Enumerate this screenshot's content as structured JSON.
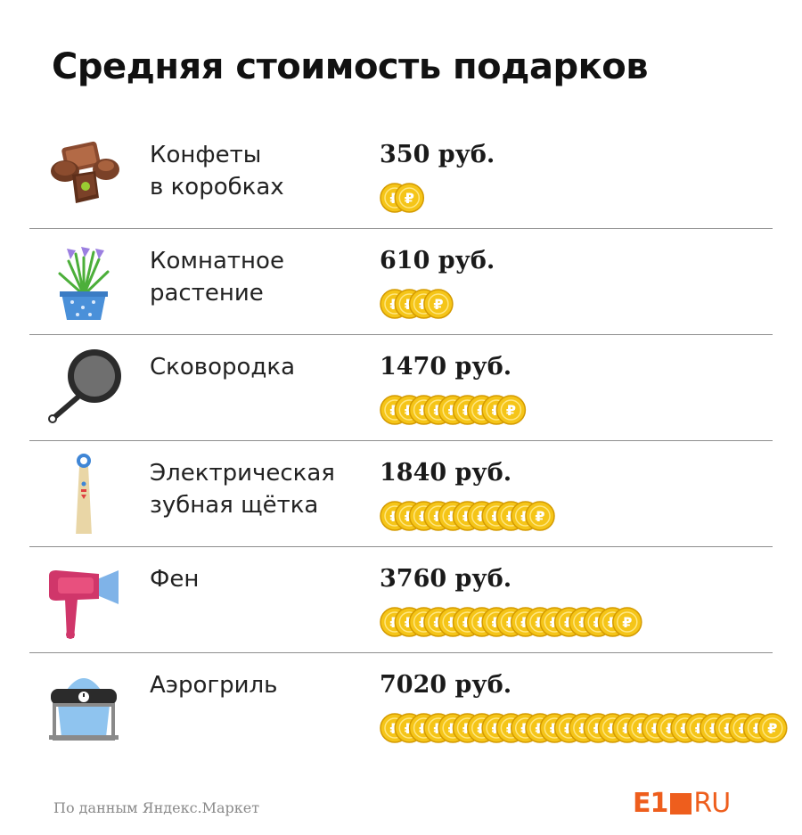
{
  "title": "Средняя стоимость подарков",
  "rows": [
    {
      "label_lines": [
        "Конфеты",
        "в коробках"
      ],
      "value_text": "350 руб.",
      "icon": "chocolate-candies-icon"
    },
    {
      "label_lines": [
        "Комнатное",
        "растение"
      ],
      "value_text": "610 руб.",
      "icon": "potted-plant-icon"
    },
    {
      "label_lines": [
        "Сковородка"
      ],
      "value_text": "1470 руб.",
      "icon": "frying-pan-icon"
    },
    {
      "label_lines": [
        "Электрическая",
        "зубная щётка"
      ],
      "value_text": "1840 руб.",
      "icon": "electric-toothbrush-icon"
    },
    {
      "label_lines": [
        "Фен"
      ],
      "value_text": "3760 руб.",
      "icon": "hair-dryer-icon"
    },
    {
      "label_lines": [
        "Аэрогриль"
      ],
      "value_text": "7020 руб.",
      "icon": "air-grill-icon"
    }
  ],
  "chart_data": {
    "type": "bar",
    "title": "Средняя стоимость подарков",
    "categories": [
      "Конфеты в коробках",
      "Комнатное растение",
      "Сковородка",
      "Электрическая зубная щётка",
      "Фен",
      "Аэрогриль"
    ],
    "values": [
      350,
      610,
      1470,
      1840,
      3760,
      7020
    ],
    "unit": "руб.",
    "coin_counts": [
      2,
      4,
      9,
      11,
      17,
      27
    ]
  },
  "colors": {
    "coin": "#f5c518",
    "coin_edge": "#d49a00",
    "accent": "#ee5e1d",
    "divider": "#8e8e8e"
  },
  "footer": {
    "source": "По данным Яндекс.Маркет",
    "logo_e1": "E1",
    "logo_ru": "RU"
  }
}
